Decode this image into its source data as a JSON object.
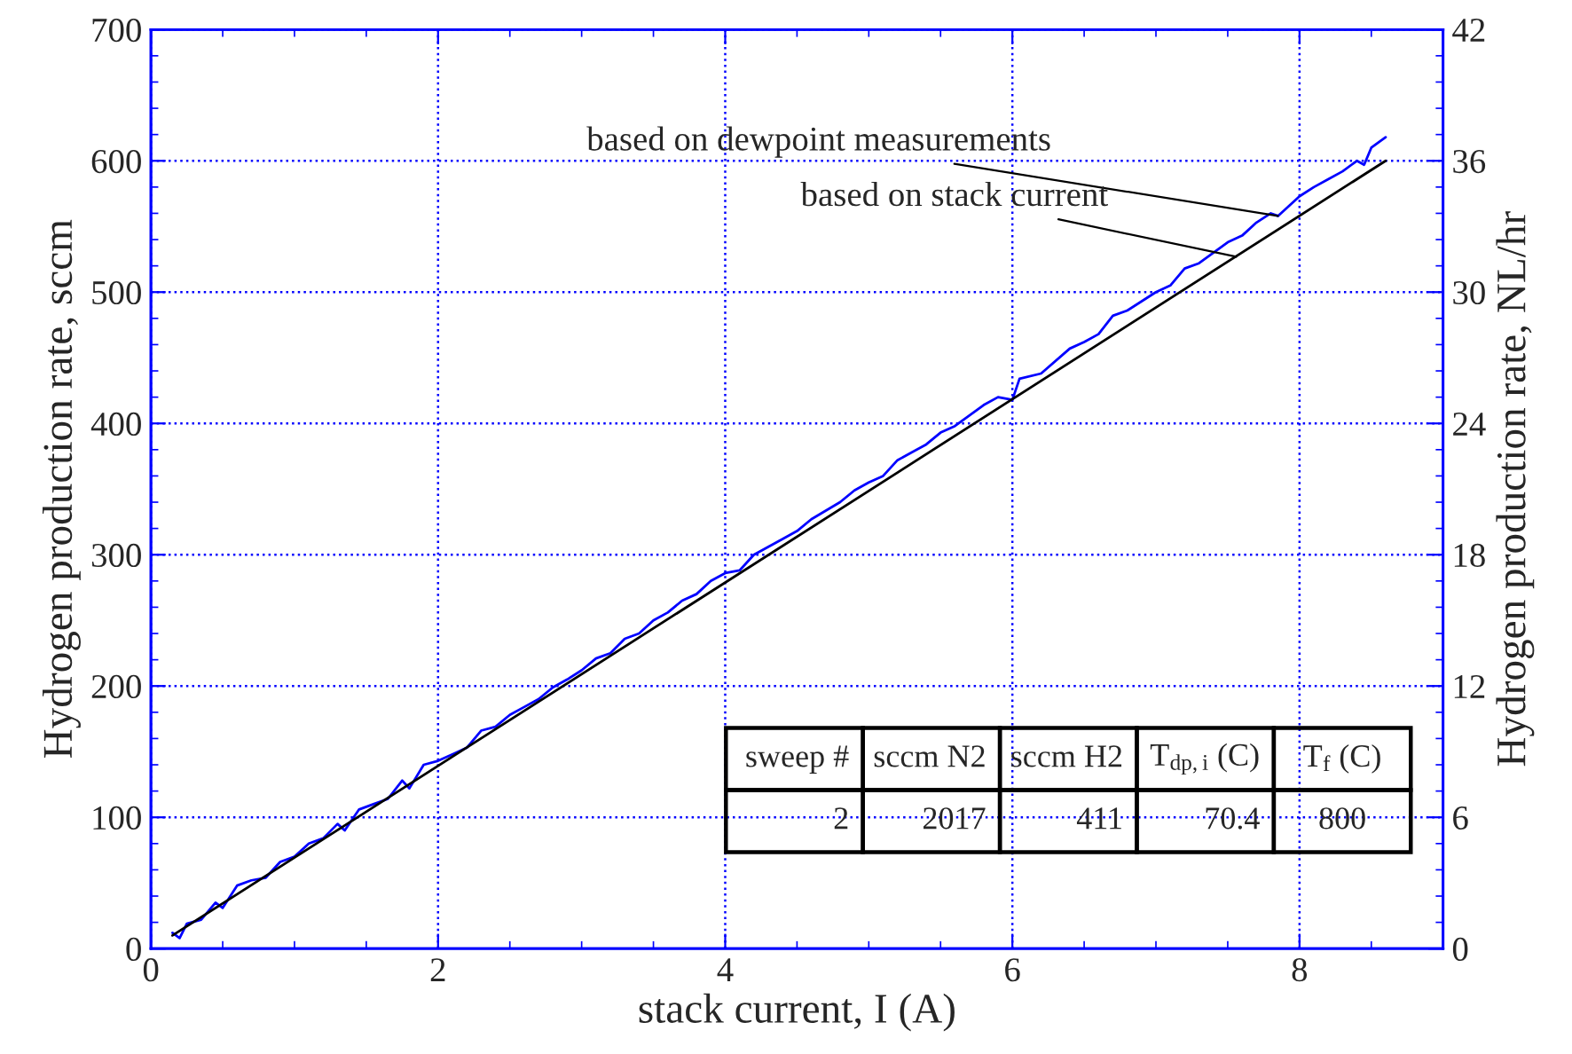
{
  "chart_data": {
    "type": "line",
    "xlabel": "stack current, I (A)",
    "ylabel": "Hydrogen production rate, sccm",
    "y2label": "Hydrogen production rate, NL/hr",
    "xlim": [
      0,
      9
    ],
    "xticks": [
      0,
      2,
      4,
      6,
      8
    ],
    "ylim": [
      0,
      700
    ],
    "yticks": [
      0,
      100,
      200,
      300,
      400,
      500,
      600,
      700
    ],
    "y2lim": [
      0,
      42
    ],
    "y2ticks": [
      0,
      6,
      12,
      18,
      24,
      30,
      36,
      42
    ],
    "grid": true,
    "marker": "none",
    "line_style": "solid",
    "series": [
      {
        "color": "#0000ff",
        "x": [
          0.15,
          0.2,
          0.25,
          0.35,
          0.45,
          0.5,
          0.6,
          0.7,
          0.8,
          0.9,
          1.0,
          1.1,
          1.2,
          1.3,
          1.35,
          1.45,
          1.55,
          1.65,
          1.75,
          1.8,
          1.9,
          2.0,
          2.1,
          2.2,
          2.3,
          2.4,
          2.5,
          2.6,
          2.7,
          2.8,
          2.9,
          3.0,
          3.1,
          3.2,
          3.3,
          3.4,
          3.5,
          3.6,
          3.7,
          3.8,
          3.9,
          4.0,
          4.1,
          4.2,
          4.4,
          4.5,
          4.6,
          4.8,
          4.9,
          5.0,
          5.1,
          5.2,
          5.4,
          5.5,
          5.6,
          5.8,
          5.9,
          6.0,
          6.05,
          6.2,
          6.4,
          6.5,
          6.6,
          6.7,
          6.8,
          7.0,
          7.1,
          7.2,
          7.3,
          7.4,
          7.5,
          7.6,
          7.7,
          7.8,
          7.85,
          8.0,
          8.1,
          8.2,
          8.3,
          8.4,
          8.45,
          8.5,
          8.6
        ],
        "values": [
          12,
          8,
          19,
          22,
          35,
          31,
          48,
          52,
          54,
          66,
          70,
          80,
          84,
          95,
          90,
          106,
          110,
          114,
          128,
          122,
          140,
          143,
          148,
          153,
          166,
          169,
          178,
          184,
          190,
          199,
          205,
          212,
          221,
          225,
          236,
          240,
          250,
          256,
          265,
          270,
          280,
          286,
          288,
          300,
          312,
          318,
          327,
          340,
          349,
          355,
          360,
          372,
          384,
          393,
          398,
          414,
          420,
          418,
          434,
          438,
          457,
          462,
          468,
          482,
          486,
          500,
          505,
          518,
          522,
          530,
          538,
          543,
          553,
          560,
          558,
          573,
          580,
          586,
          592,
          600,
          597,
          610,
          618
        ]
      },
      {
        "color": "#000000",
        "x": [
          0.15,
          8.6
        ],
        "values": [
          10,
          600
        ]
      }
    ],
    "annotations": [
      {
        "text": "based on dewpoint measurements",
        "x": 7.85,
        "y": 558
      },
      {
        "text": "based on stack current",
        "x": 7.56,
        "y": 527
      },
      "sweep #",
      "sccm N2",
      "sccm H2",
      "T$_{dp,i}$ (C)",
      "T$_{f}$ (C)",
      "2",
      "2017",
      "411",
      "70.4",
      "800"
    ]
  }
}
